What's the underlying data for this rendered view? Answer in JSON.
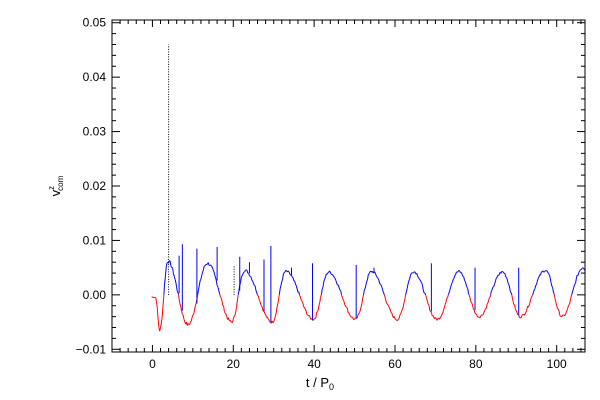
{
  "chart_data": {
    "type": "line",
    "xlabel": "t / P",
    "xlabel_subscript": "0",
    "ylabel": "v",
    "ylabel_superscript": "z",
    "ylabel_subscript": "com",
    "xlim": [
      -10,
      107
    ],
    "ylim": [
      -0.0105,
      0.0505
    ],
    "x_ticks": [
      {
        "value": 0,
        "label": "0"
      },
      {
        "value": 20,
        "label": "20"
      },
      {
        "value": 40,
        "label": "40"
      },
      {
        "value": 60,
        "label": "60"
      },
      {
        "value": 80,
        "label": "80"
      },
      {
        "value": 100,
        "label": "100"
      }
    ],
    "y_ticks": [
      {
        "value": -0.01,
        "label": "−0.01"
      },
      {
        "value": 0.0,
        "label": "0.00"
      },
      {
        "value": 0.01,
        "label": "0.01"
      },
      {
        "value": 0.02,
        "label": "0.02"
      },
      {
        "value": 0.03,
        "label": "0.03"
      },
      {
        "value": 0.04,
        "label": "0.04"
      },
      {
        "value": 0.05,
        "label": "0.05"
      }
    ],
    "grid": false,
    "colors": {
      "positive": "#0000ff",
      "negative": "#ff0000",
      "dotted": "#000000",
      "axis": "#000000"
    },
    "period": 10.5,
    "positive_peaks": [
      {
        "x": 3.8,
        "y": 0.0062
      },
      {
        "x": 13.6,
        "y": 0.0058
      },
      {
        "x": 22.8,
        "y": 0.0045
      },
      {
        "x": 33.0,
        "y": 0.0043
      },
      {
        "x": 43.6,
        "y": 0.0042
      },
      {
        "x": 54.2,
        "y": 0.0043
      },
      {
        "x": 64.6,
        "y": 0.0043
      },
      {
        "x": 75.8,
        "y": 0.0043
      },
      {
        "x": 86.6,
        "y": 0.0042
      },
      {
        "x": 97.2,
        "y": 0.0045
      },
      {
        "x": 106.5,
        "y": 0.005
      }
    ],
    "negative_troughs": [
      {
        "x": 1.8,
        "y": -0.0065
      },
      {
        "x": 8.8,
        "y": -0.0055
      },
      {
        "x": 19.6,
        "y": -0.005
      },
      {
        "x": 29.6,
        "y": -0.005
      },
      {
        "x": 39.8,
        "y": -0.0045
      },
      {
        "x": 50.2,
        "y": -0.0045
      },
      {
        "x": 60.6,
        "y": -0.0045
      },
      {
        "x": 70.4,
        "y": -0.0045
      },
      {
        "x": 80.8,
        "y": -0.004
      },
      {
        "x": 91.0,
        "y": -0.004
      },
      {
        "x": 101.4,
        "y": -0.004
      }
    ],
    "spikes": [
      {
        "x": 6.6,
        "y": 0.0072
      },
      {
        "x": 7.4,
        "y": 0.0093
      },
      {
        "x": 11.0,
        "y": 0.0085
      },
      {
        "x": 16.0,
        "y": 0.0088
      },
      {
        "x": 21.6,
        "y": 0.007
      },
      {
        "x": 24.0,
        "y": 0.006
      },
      {
        "x": 27.6,
        "y": 0.0065
      },
      {
        "x": 29.3,
        "y": 0.009
      },
      {
        "x": 34.4,
        "y": 0.005
      },
      {
        "x": 39.6,
        "y": 0.0058
      },
      {
        "x": 50.4,
        "y": 0.0055
      },
      {
        "x": 54.8,
        "y": 0.005
      },
      {
        "x": 69.0,
        "y": 0.0058
      },
      {
        "x": 79.8,
        "y": 0.005
      },
      {
        "x": 90.6,
        "y": 0.005
      }
    ],
    "dotted_lines": [
      {
        "x": 4.0,
        "y": 0.046
      },
      {
        "x": 20.2,
        "y": 0.0055
      }
    ]
  }
}
